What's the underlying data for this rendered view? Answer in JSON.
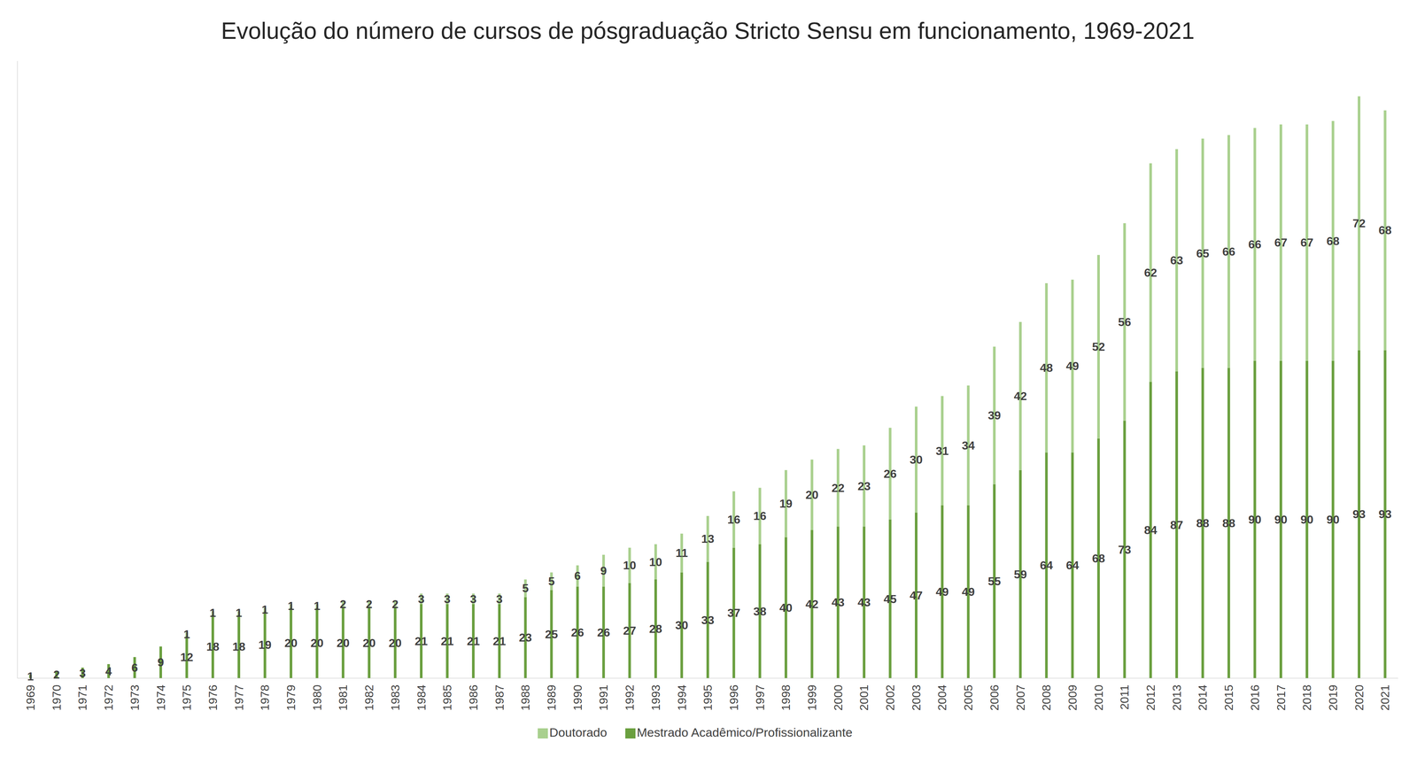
{
  "chart_data": {
    "type": "bar",
    "title": "Evolução do número de cursos de pósgraduação Stricto Sensu em funcionamento, 1969-2021",
    "categories": [
      "1969",
      "1970",
      "1971",
      "1972",
      "1973",
      "1974",
      "1975",
      "1976",
      "1977",
      "1978",
      "1979",
      "1980",
      "1981",
      "1982",
      "1983",
      "1984",
      "1985",
      "1986",
      "1987",
      "1988",
      "1989",
      "1990",
      "1991",
      "1992",
      "1993",
      "1994",
      "1995",
      "1996",
      "1997",
      "1998",
      "1999",
      "2000",
      "2001",
      "2002",
      "2003",
      "2004",
      "2005",
      "2006",
      "2007",
      "2008",
      "2009",
      "2010",
      "2011",
      "2012",
      "2013",
      "2014",
      "2015",
      "2016",
      "2017",
      "2018",
      "2019",
      "2020",
      "2021"
    ],
    "series": [
      {
        "name": "Mestrado Acadêmico/Profissionalizante",
        "color": "#6a9f3f",
        "values": [
          1,
          2,
          3,
          4,
          6,
          9,
          12,
          18,
          18,
          19,
          20,
          20,
          20,
          20,
          20,
          21,
          21,
          21,
          21,
          23,
          25,
          26,
          26,
          27,
          28,
          30,
          33,
          37,
          38,
          40,
          42,
          43,
          43,
          45,
          47,
          49,
          49,
          55,
          59,
          64,
          64,
          68,
          73,
          84,
          87,
          88,
          88,
          90,
          90,
          90,
          90,
          93,
          93
        ]
      },
      {
        "name": "Doutorado",
        "color": "#a9d08e",
        "values": [
          null,
          null,
          null,
          null,
          null,
          null,
          1,
          1,
          1,
          1,
          1,
          1,
          2,
          2,
          2,
          3,
          3,
          3,
          3,
          5,
          5,
          6,
          9,
          10,
          10,
          11,
          13,
          16,
          16,
          19,
          20,
          22,
          23,
          26,
          30,
          31,
          34,
          39,
          42,
          48,
          49,
          52,
          56,
          62,
          63,
          65,
          66,
          66,
          67,
          67,
          68,
          72,
          68
        ]
      }
    ],
    "ylim": [
      0,
      175
    ],
    "stacked": true,
    "data_labels": true,
    "tick_labels": "x",
    "grid": false,
    "legend": "bottom"
  }
}
